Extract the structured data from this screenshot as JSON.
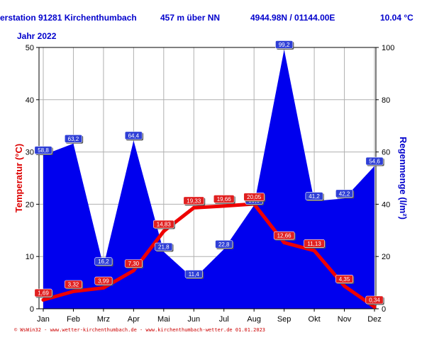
{
  "header": {
    "station": "erstation 91281 Kirchenthumbach",
    "altitude": "457 m über NN",
    "coords": "4944.98N / 01144.00E",
    "mean_temp": "10.04 °C",
    "year": "Jahr  2022"
  },
  "footer": {
    "text": "© WsWin32  -  www.wetter-kirchenthumbach.de  -  www.kirchenthumbach-wetter.de   01.01.2023"
  },
  "colors": {
    "rain_fill": "#0000ee",
    "temp_line": "#ee0000",
    "left_axis": "#dd0000",
    "right_axis": "#0000cc",
    "header": "#0000cc"
  },
  "chart_data": {
    "type": "area",
    "categories": [
      "Jan",
      "Feb",
      "Mrz",
      "Apr",
      "Mai",
      "Jun",
      "Jul",
      "Aug",
      "Sep",
      "Okt",
      "Nov",
      "Dez"
    ],
    "series": [
      {
        "name": "",
        "axis": "right",
        "kind": "area",
        "values": [
          58.8,
          63.2,
          16.2,
          64.4,
          21.8,
          11.4,
          22.8,
          39.6,
          99.2,
          41.2,
          42.2,
          54.6
        ],
        "labels": [
          "58,8",
          "63,2",
          "16,2",
          "64,4",
          "21,8",
          "11,4",
          "22,8",
          "39,6",
          "99,2",
          "41,2",
          "42,2",
          "54,6"
        ]
      },
      {
        "name": "",
        "axis": "left",
        "kind": "line",
        "values": [
          1.69,
          3.32,
          3.99,
          7.3,
          14.83,
          19.33,
          19.66,
          20.05,
          12.66,
          11.13,
          4.35,
          0.34
        ],
        "labels": [
          "1,69",
          "3,32",
          "3,99",
          "7,30",
          "14,83",
          "19,33",
          "19,66",
          "20,05",
          "12,66",
          "11,13",
          "4,35",
          "0,34"
        ]
      }
    ],
    "ylabel": "Temperatur  (°C)",
    "y2label": "Regenmenge  (l/m²)",
    "ylim": [
      0,
      50
    ],
    "y2lim": [
      0,
      100
    ],
    "yticks": [
      "0",
      "10",
      "20",
      "30",
      "40",
      "50"
    ],
    "y2ticks": [
      "0",
      "20",
      "40",
      "60",
      "80",
      "100"
    ],
    "grid": true
  }
}
